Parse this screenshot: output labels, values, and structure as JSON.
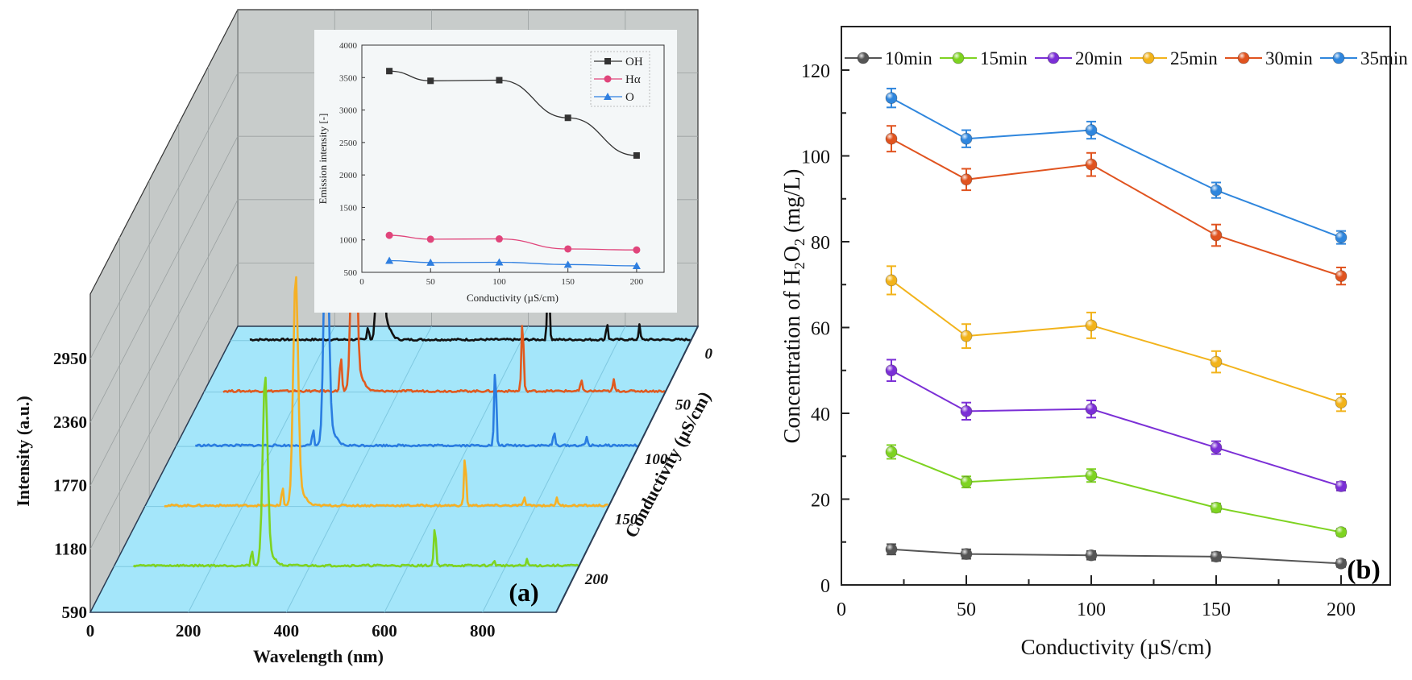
{
  "chart_data": [
    {
      "panel": "(a)",
      "type": "line",
      "subtype": "3d-waterfall",
      "title": "",
      "xlabel": "Wavelength (nm)",
      "ylabel": "Intensity (a.u.)",
      "zlabel": "Conductivity (µS/cm)",
      "x_ticks": [
        "0",
        "200",
        "400",
        "600",
        "800"
      ],
      "y_ticks": [
        "590",
        "1180",
        "1770",
        "2360",
        "2950"
      ],
      "z_ticks": [
        "0",
        "50",
        "100",
        "150",
        "200"
      ],
      "xlim": [
        0,
        950
      ],
      "series": [
        {
          "name": "0",
          "color": "#111111",
          "peaks": [
            {
              "x": 309,
              "h": 1.0
            },
            {
              "x": 284,
              "h": 0.05
            },
            {
              "x": 656,
              "h": 0.27
            },
            {
              "x": 777,
              "h": 0.06
            },
            {
              "x": 844,
              "h": 0.05
            }
          ]
        },
        {
          "name": "50",
          "color": "#e05a1f",
          "peaks": [
            {
              "x": 309,
              "h": 0.94
            },
            {
              "x": 282,
              "h": 0.12
            },
            {
              "x": 656,
              "h": 0.25
            },
            {
              "x": 777,
              "h": 0.04
            },
            {
              "x": 844,
              "h": 0.04
            }
          ]
        },
        {
          "name": "100",
          "color": "#2a7de1",
          "peaks": [
            {
              "x": 309,
              "h": 0.82
            },
            {
              "x": 282,
              "h": 0.06
            },
            {
              "x": 656,
              "h": 0.27
            },
            {
              "x": 777,
              "h": 0.05
            },
            {
              "x": 844,
              "h": 0.03
            }
          ]
        },
        {
          "name": "150",
          "color": "#f5b025",
          "peaks": [
            {
              "x": 309,
              "h": 0.78
            },
            {
              "x": 282,
              "h": 0.07
            },
            {
              "x": 656,
              "h": 0.17
            },
            {
              "x": 777,
              "h": 0.03
            },
            {
              "x": 844,
              "h": 0.03
            }
          ]
        },
        {
          "name": "200",
          "color": "#7ed321",
          "peaks": [
            {
              "x": 309,
              "h": 0.64
            },
            {
              "x": 282,
              "h": 0.06
            },
            {
              "x": 656,
              "h": 0.14
            },
            {
              "x": 777,
              "h": 0.02
            },
            {
              "x": 844,
              "h": 0.02
            }
          ]
        }
      ],
      "panel_label": "(a)"
    },
    {
      "panel": "(a)-inset",
      "type": "line",
      "title": "",
      "xlabel": "Conductivity (µS/cm)",
      "ylabel": "Emission intensity [-]",
      "x": [
        20,
        50,
        100,
        150,
        200
      ],
      "xlim": [
        0,
        220
      ],
      "ylim": [
        500,
        4000
      ],
      "x_ticks": [
        "0",
        "50",
        "100",
        "150",
        "200"
      ],
      "y_ticks": [
        "500",
        "1000",
        "1500",
        "2000",
        "2500",
        "3000",
        "3500",
        "4000"
      ],
      "legend_position": "top-right",
      "series": [
        {
          "name": "OH",
          "marker": "square",
          "color": "#333333",
          "values": [
            3600,
            3450,
            3460,
            2880,
            2300
          ]
        },
        {
          "name": "Hα",
          "marker": "circle",
          "color": "#e0457b",
          "values": [
            1070,
            1010,
            1015,
            860,
            845
          ]
        },
        {
          "name": "O",
          "marker": "triangle",
          "color": "#2f7fe0",
          "values": [
            680,
            650,
            655,
            620,
            600
          ]
        }
      ]
    },
    {
      "panel": "(b)",
      "type": "line",
      "title": "",
      "xlabel": "Conductivity (µS/cm)",
      "ylabel_parts": [
        "Concentration of H",
        "2",
        "O",
        "2",
        "  (mg/L)"
      ],
      "ylabel": "Concentration of H2O2 (mg/L)",
      "x": [
        20,
        50,
        100,
        150,
        200
      ],
      "xlim": [
        0,
        220
      ],
      "ylim": [
        0,
        130
      ],
      "x_ticks": [
        "0",
        "50",
        "100",
        "150",
        "200"
      ],
      "y_ticks": [
        "0",
        "20",
        "40",
        "60",
        "80",
        "100",
        "120"
      ],
      "legend_position": "top",
      "error_bars": true,
      "series": [
        {
          "name": "10min",
          "color": "#555555",
          "values": [
            8.3,
            7.2,
            6.9,
            6.6,
            5.0
          ],
          "errors": [
            1.2,
            1.1,
            1.0,
            1.0,
            0.8
          ]
        },
        {
          "name": "15min",
          "color": "#7ed321",
          "values": [
            31.0,
            24.0,
            25.5,
            18.0,
            12.3
          ],
          "errors": [
            1.6,
            1.3,
            1.5,
            1.0,
            0.8
          ]
        },
        {
          "name": "20min",
          "color": "#7b2fd6",
          "values": [
            50.0,
            40.5,
            41.0,
            32.0,
            23.0
          ],
          "errors": [
            2.5,
            2.0,
            2.0,
            1.5,
            1.0
          ]
        },
        {
          "name": "25min",
          "color": "#f2b31b",
          "values": [
            71.0,
            58.0,
            60.5,
            52.0,
            42.5
          ],
          "errors": [
            3.3,
            2.8,
            3.0,
            2.5,
            2.0
          ]
        },
        {
          "name": "30min",
          "color": "#e0531f",
          "values": [
            104.0,
            94.5,
            98.0,
            81.5,
            72.0
          ],
          "errors": [
            3.0,
            2.5,
            2.7,
            2.5,
            2.0
          ]
        },
        {
          "name": "35min",
          "color": "#2f86dd",
          "values": [
            113.5,
            104.0,
            106.0,
            92.0,
            81.0
          ],
          "errors": [
            2.2,
            2.0,
            2.0,
            1.8,
            1.5
          ]
        }
      ],
      "panel_label": "(b)"
    }
  ]
}
